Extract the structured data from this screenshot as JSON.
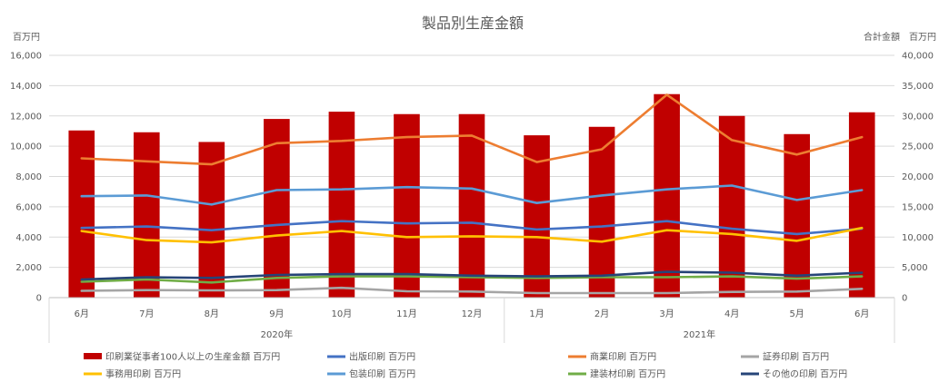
{
  "chart_data": {
    "type": "bar",
    "title": "製品別生産金額",
    "left_axis_unit": "百万円",
    "right_axis_unit": "合計金額　百万円",
    "left_ylim": [
      0,
      16000
    ],
    "left_ticks": [
      "0",
      "2,000",
      "4,000",
      "6,000",
      "8,000",
      "10,000",
      "12,000",
      "14,000",
      "16,000"
    ],
    "right_ylim": [
      0,
      40000
    ],
    "right_ticks": [
      "0",
      "5,000",
      "10,000",
      "15,000",
      "20,000",
      "25,000",
      "30,000",
      "35,000",
      "40,000"
    ],
    "categories": [
      "6月",
      "7月",
      "8月",
      "9月",
      "10月",
      "11月",
      "12月",
      "1月",
      "2月",
      "3月",
      "4月",
      "5月",
      "6月"
    ],
    "groups": [
      {
        "label": "2020年",
        "start": 0,
        "end": 6
      },
      {
        "label": "2021年",
        "start": 7,
        "end": 12
      }
    ],
    "grid": true,
    "legend_position": "bottom",
    "bar_series": {
      "name": "印刷業従事者100人以上の生産金額 百万円",
      "axis": "right",
      "color": "#c00000",
      "values": [
        27600,
        27300,
        25700,
        29500,
        30700,
        30300,
        30300,
        26800,
        28200,
        33600,
        30000,
        27000,
        30600
      ]
    },
    "series": [
      {
        "name": "出版印刷 百万円",
        "color": "#4472c4",
        "values": [
          4600,
          4700,
          4450,
          4800,
          5050,
          4900,
          4950,
          4500,
          4700,
          5050,
          4550,
          4200,
          4550
        ]
      },
      {
        "name": "商業印刷 百万円",
        "color": "#ed7d31",
        "values": [
          9200,
          9000,
          8800,
          10200,
          10350,
          10600,
          10700,
          8950,
          9800,
          13400,
          10400,
          9450,
          10600
        ]
      },
      {
        "name": "証券印刷 百万円",
        "color": "#a5a5a5",
        "values": [
          450,
          500,
          480,
          500,
          650,
          420,
          400,
          300,
          300,
          300,
          380,
          400,
          580
        ]
      },
      {
        "name": "事務用印刷 百万円",
        "color": "#ffc000",
        "values": [
          4400,
          3800,
          3650,
          4100,
          4400,
          4000,
          4050,
          4000,
          3700,
          4450,
          4200,
          3750,
          4600
        ]
      },
      {
        "name": "包装印刷 百万円",
        "color": "#5b9bd5",
        "values": [
          6700,
          6750,
          6150,
          7100,
          7150,
          7300,
          7200,
          6250,
          6750,
          7150,
          7400,
          6450,
          7100
        ]
      },
      {
        "name": "建装材印刷 百万円",
        "color": "#70ad47",
        "values": [
          1050,
          1200,
          1000,
          1300,
          1400,
          1400,
          1350,
          1300,
          1350,
          1350,
          1400,
          1250,
          1400
        ]
      },
      {
        "name": "その他の印刷 百万円",
        "color": "#264478",
        "values": [
          1200,
          1350,
          1300,
          1500,
          1550,
          1550,
          1450,
          1400,
          1450,
          1700,
          1650,
          1450,
          1650
        ]
      }
    ]
  }
}
